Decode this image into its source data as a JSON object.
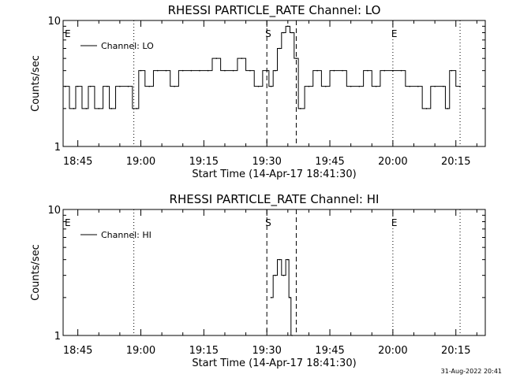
{
  "chart_data": [
    {
      "type": "line",
      "title": "RHESSI PARTICLE_RATE Channel: LO",
      "xlabel": "Start Time (14-Apr-17 18:41:30)",
      "ylabel": "Counts/sec",
      "yscale": "log",
      "ylim": [
        1,
        10
      ],
      "xlim": [
        "18:41:30",
        "20:22:00"
      ],
      "x_tick_labels": [
        "18:45",
        "19:00",
        "19:15",
        "19:30",
        "19:45",
        "20:00",
        "20:15"
      ],
      "y_tick_labels": [
        "1",
        "10"
      ],
      "legend_placement": "top-left",
      "series": [
        {
          "name": "Channel: LO",
          "x": [
            "18:42",
            "18:44",
            "18:45",
            "18:47",
            "18:48",
            "18:50",
            "18:52",
            "18:53",
            "18:55",
            "18:57",
            "18:59",
            "19:00",
            "19:02",
            "19:04",
            "19:06",
            "19:08",
            "19:10",
            "19:12",
            "19:14",
            "19:16",
            "19:18",
            "19:20",
            "19:22",
            "19:24",
            "19:26",
            "19:28",
            "19:30",
            "19:31",
            "19:32",
            "19:33",
            "19:34",
            "19:35",
            "19:36",
            "19:37",
            "19:38",
            "19:40",
            "19:42",
            "19:44",
            "19:46",
            "19:48",
            "19:50",
            "19:52",
            "19:54",
            "19:56",
            "19:58",
            "20:00",
            "20:02",
            "20:04",
            "20:06",
            "20:08",
            "20:10",
            "20:12",
            "20:13",
            "20:14",
            "20:16"
          ],
          "y": [
            3,
            2,
            3,
            2,
            3,
            2,
            3,
            2,
            3,
            3,
            2,
            4,
            3,
            4,
            4,
            3,
            4,
            4,
            4,
            4,
            5,
            4,
            4,
            5,
            4,
            3,
            4,
            3,
            4,
            6,
            8,
            9,
            8,
            5,
            2,
            3,
            4,
            3,
            4,
            4,
            3,
            3,
            4,
            3,
            4,
            4,
            4,
            3,
            3,
            2,
            3,
            3,
            2,
            4,
            3
          ]
        }
      ],
      "annotations": [
        {
          "label": "E",
          "x": "18:41:30"
        },
        {
          "label": "S",
          "x": "19:30:00"
        },
        {
          "label": "E",
          "x": "20:00:00"
        }
      ],
      "vertical_lines": [
        {
          "x": "18:58:20",
          "style": "dotted"
        },
        {
          "x": "19:30:00",
          "style": "dashed"
        },
        {
          "x": "19:37:00",
          "style": "dashed"
        },
        {
          "x": "20:00:00",
          "style": "dotted"
        },
        {
          "x": "20:16:00",
          "style": "dotted"
        }
      ]
    },
    {
      "type": "line",
      "title": "RHESSI PARTICLE_RATE Channel: HI",
      "xlabel": "Start Time (14-Apr-17 18:41:30)",
      "ylabel": "Counts/sec",
      "yscale": "log",
      "ylim": [
        1,
        10
      ],
      "xlim": [
        "18:41:30",
        "20:22:00"
      ],
      "x_tick_labels": [
        "18:45",
        "19:00",
        "19:15",
        "19:30",
        "19:45",
        "20:00",
        "20:15"
      ],
      "y_tick_labels": [
        "1",
        "10"
      ],
      "legend_placement": "top-left",
      "series": [
        {
          "name": "Channel: HI",
          "x": [
            "19:31:00",
            "19:32:00",
            "19:33:00",
            "19:34:00",
            "19:35:00",
            "19:35:30",
            "19:36:00"
          ],
          "y": [
            2,
            3,
            4,
            3,
            4,
            2,
            1
          ]
        }
      ],
      "annotations": [
        {
          "label": "E",
          "x": "18:41:30"
        },
        {
          "label": "S",
          "x": "19:30:00"
        },
        {
          "label": "E",
          "x": "20:00:00"
        }
      ],
      "vertical_lines": [
        {
          "x": "18:58:20",
          "style": "dotted"
        },
        {
          "x": "19:30:00",
          "style": "dashed"
        },
        {
          "x": "19:37:00",
          "style": "dashed"
        },
        {
          "x": "20:00:00",
          "style": "dotted"
        },
        {
          "x": "20:16:00",
          "style": "dotted"
        }
      ]
    }
  ],
  "footer": {
    "timestamp": "31-Aug-2022 20:41"
  },
  "colors": {
    "background": "#ffffff",
    "foreground": "#000000"
  }
}
